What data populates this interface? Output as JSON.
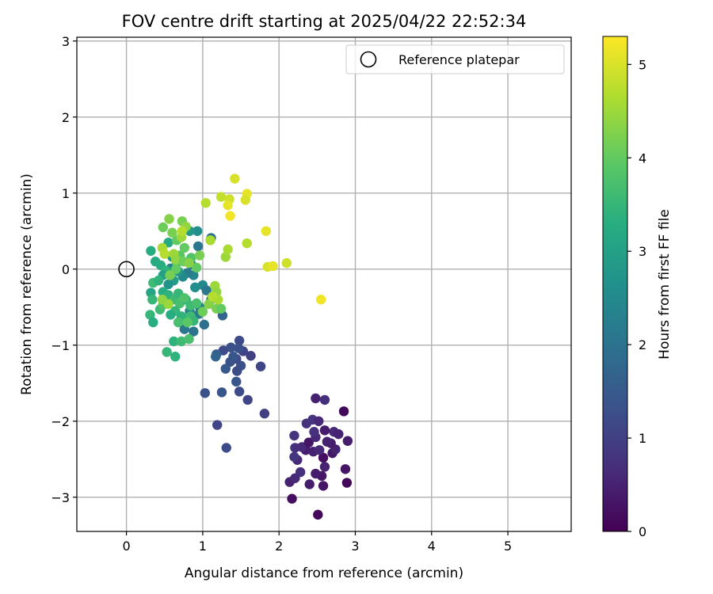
{
  "chart_data": {
    "type": "scatter",
    "title": "FOV centre drift starting at 2025/04/22 22:52:34",
    "xlabel": "Angular distance from reference (arcmin)",
    "ylabel": "Rotation from reference (arcmin)",
    "xlim": [
      -0.65,
      5.83
    ],
    "ylim": [
      -3.45,
      3.05
    ],
    "xticks": [
      0,
      1,
      2,
      3,
      4,
      5
    ],
    "yticks": [
      -3,
      -2,
      -1,
      0,
      1,
      2,
      3
    ],
    "xtick_labels": [
      "0",
      "1",
      "2",
      "3",
      "4",
      "5"
    ],
    "ytick_labels": [
      "−3",
      "−2",
      "−1",
      "0",
      "1",
      "2",
      "3"
    ],
    "grid": true,
    "legend": {
      "location": "top-right",
      "entries": [
        "Reference platepar"
      ]
    },
    "reference_point": {
      "x": 0,
      "y": 0,
      "marker": "open-circle",
      "label": "Reference platepar"
    },
    "colorbar": {
      "label": "Hours from first FF file",
      "colormap": "viridis",
      "range": [
        0,
        5.3
      ],
      "ticks": [
        0,
        1,
        2,
        3,
        4,
        5
      ],
      "tick_labels": [
        "0",
        "1",
        "2",
        "3",
        "4",
        "5"
      ]
    },
    "series": [
      {
        "points": [
          [
            2.51,
            -3.23,
            0.1
          ],
          [
            2.17,
            -3.02,
            0.2
          ],
          [
            2.58,
            -2.85,
            0.3
          ],
          [
            2.4,
            -2.83,
            0.4
          ],
          [
            2.89,
            -2.81,
            0.1
          ],
          [
            2.14,
            -2.8,
            0.5
          ],
          [
            2.87,
            -2.63,
            0.3
          ],
          [
            2.21,
            -2.75,
            0.6
          ],
          [
            2.56,
            -2.72,
            0.3
          ],
          [
            2.48,
            -2.69,
            0.4
          ],
          [
            2.28,
            -2.67,
            0.7
          ],
          [
            2.6,
            -2.6,
            0.5
          ],
          [
            2.24,
            -2.51,
            0.6
          ],
          [
            2.35,
            -2.38,
            0.4
          ],
          [
            2.58,
            -2.48,
            0.2
          ],
          [
            2.7,
            -2.42,
            0.3
          ],
          [
            2.74,
            -2.37,
            0.5
          ],
          [
            2.2,
            -2.47,
            0.8
          ],
          [
            2.3,
            -2.34,
            0.6
          ],
          [
            2.45,
            -2.4,
            0.5
          ],
          [
            2.53,
            -2.38,
            0.6
          ],
          [
            2.68,
            -2.29,
            0.4
          ],
          [
            2.21,
            -2.35,
            0.7
          ],
          [
            2.39,
            -2.28,
            0.3
          ],
          [
            2.63,
            -2.27,
            0.5
          ],
          [
            2.9,
            -2.26,
            0.4
          ],
          [
            2.48,
            -2.21,
            0.6
          ],
          [
            2.2,
            -2.19,
            0.8
          ],
          [
            2.72,
            -2.14,
            0.6
          ],
          [
            2.78,
            -2.17,
            0.5
          ],
          [
            2.46,
            -2.14,
            0.7
          ],
          [
            2.6,
            -2.12,
            0.4
          ],
          [
            2.36,
            -2.03,
            0.7
          ],
          [
            2.44,
            -1.98,
            0.8
          ],
          [
            2.52,
            -2.0,
            0.6
          ],
          [
            2.85,
            -1.87,
            0.1
          ],
          [
            2.48,
            -1.7,
            0.5
          ],
          [
            2.6,
            -1.72,
            0.7
          ],
          [
            1.31,
            -2.35,
            1.2
          ],
          [
            1.19,
            -2.05,
            1.1
          ],
          [
            1.03,
            -1.63,
            1.3
          ],
          [
            1.25,
            -1.62,
            1.4
          ],
          [
            1.48,
            -1.61,
            1.2
          ],
          [
            1.59,
            -1.72,
            1.1
          ],
          [
            1.81,
            -1.9,
            1.0
          ],
          [
            1.44,
            -1.48,
            1.4
          ],
          [
            1.5,
            -1.27,
            1.3
          ],
          [
            1.3,
            -1.31,
            1.5
          ],
          [
            1.45,
            -1.34,
            1.2
          ],
          [
            1.36,
            -1.22,
            1.3
          ],
          [
            1.44,
            -1.18,
            1.2
          ],
          [
            1.53,
            -1.08,
            1.1
          ],
          [
            1.63,
            -1.14,
            1.0
          ],
          [
            1.76,
            -1.28,
            1.1
          ],
          [
            1.37,
            -1.03,
            1.3
          ],
          [
            1.27,
            -1.07,
            1.2
          ],
          [
            1.48,
            -0.94,
            1.2
          ],
          [
            1.4,
            -1.15,
            1.4
          ],
          [
            1.18,
            -1.12,
            1.6
          ],
          [
            1.17,
            -1.15,
            1.7
          ],
          [
            1.47,
            -1.04,
            1.3
          ],
          [
            1.02,
            -0.73,
            1.9
          ],
          [
            0.88,
            -0.82,
            2.0
          ],
          [
            0.76,
            -0.79,
            2.1
          ],
          [
            1.26,
            -0.61,
            1.7
          ],
          [
            0.95,
            -0.59,
            2.2
          ],
          [
            0.83,
            -0.55,
            2.4
          ],
          [
            0.96,
            -0.5,
            2.3
          ],
          [
            1.11,
            -0.4,
            2.0
          ],
          [
            1.0,
            -0.21,
            2.5
          ],
          [
            1.05,
            -0.28,
            2.1
          ],
          [
            0.9,
            -0.24,
            2.6
          ],
          [
            0.88,
            -0.08,
            2.4
          ],
          [
            0.8,
            -0.05,
            2.2
          ],
          [
            0.74,
            -0.1,
            2.5
          ],
          [
            0.68,
            -0.03,
            2.8
          ],
          [
            0.62,
            -0.15,
            2.9
          ],
          [
            0.55,
            -0.2,
            2.7
          ],
          [
            0.58,
            0.01,
            2.3
          ],
          [
            0.85,
            0.06,
            2.0
          ],
          [
            0.94,
            0.3,
            2.1
          ],
          [
            1.11,
            0.41,
            2.0
          ],
          [
            0.93,
            0.5,
            2.6
          ],
          [
            0.83,
            0.5,
            2.8
          ],
          [
            0.6,
            0.16,
            2.9
          ],
          [
            0.55,
            0.35,
            3.2
          ],
          [
            0.32,
            0.24,
            3.3
          ],
          [
            0.38,
            0.1,
            3.2
          ],
          [
            0.45,
            0.05,
            3.3
          ],
          [
            0.52,
            -0.02,
            3.4
          ],
          [
            0.48,
            -0.08,
            3.0
          ],
          [
            0.35,
            -0.18,
            3.6
          ],
          [
            0.42,
            -0.15,
            3.4
          ],
          [
            0.32,
            -0.31,
            3.1
          ],
          [
            0.34,
            -0.4,
            3.5
          ],
          [
            0.48,
            -0.3,
            3.3
          ],
          [
            0.55,
            -0.34,
            3.4
          ],
          [
            0.62,
            -0.4,
            3.6
          ],
          [
            0.68,
            -0.32,
            3.5
          ],
          [
            0.7,
            -0.45,
            3.7
          ],
          [
            0.78,
            -0.4,
            3.4
          ],
          [
            0.84,
            -0.48,
            3.6
          ],
          [
            0.76,
            -0.38,
            3.8
          ],
          [
            0.64,
            -0.55,
            3.5
          ],
          [
            0.58,
            -0.6,
            3.3
          ],
          [
            0.72,
            -0.62,
            3.4
          ],
          [
            0.84,
            -0.62,
            3.6
          ],
          [
            0.88,
            -0.68,
            3.5
          ],
          [
            0.68,
            -0.7,
            3.7
          ],
          [
            0.44,
            -0.53,
            3.6
          ],
          [
            0.48,
            -0.47,
            3.8
          ],
          [
            0.31,
            -0.6,
            3.5
          ],
          [
            0.35,
            -0.7,
            3.3
          ],
          [
            0.62,
            -0.95,
            3.4
          ],
          [
            0.72,
            -0.95,
            3.6
          ],
          [
            0.82,
            -0.92,
            3.7
          ],
          [
            0.53,
            -1.09,
            3.5
          ],
          [
            0.64,
            -1.15,
            3.4
          ],
          [
            0.8,
            -0.7,
            3.9
          ],
          [
            0.92,
            -0.45,
            3.7
          ],
          [
            0.66,
            0.08,
            3.6
          ],
          [
            0.7,
            0.18,
            3.9
          ],
          [
            0.76,
            0.28,
            4.0
          ],
          [
            0.85,
            0.15,
            3.8
          ],
          [
            0.92,
            0.02,
            4.0
          ],
          [
            0.96,
            0.18,
            4.2
          ],
          [
            0.66,
            0.38,
            4.0
          ],
          [
            0.6,
            0.48,
            4.2
          ],
          [
            0.48,
            0.55,
            4.1
          ],
          [
            0.56,
            0.66,
            4.3
          ],
          [
            0.73,
            0.63,
            4.2
          ],
          [
            0.78,
            0.56,
            4.4
          ],
          [
            0.72,
            0.42,
            4.5
          ],
          [
            0.62,
            0.2,
            4.5
          ],
          [
            0.47,
            0.28,
            4.6
          ],
          [
            0.5,
            0.2,
            4.7
          ],
          [
            0.65,
            0.12,
            4.4
          ],
          [
            0.75,
            0.1,
            4.1
          ],
          [
            0.82,
            0.08,
            4.3
          ],
          [
            0.65,
            0.0,
            4.0
          ],
          [
            0.57,
            -0.08,
            4.2
          ],
          [
            0.73,
            0.5,
            4.7
          ],
          [
            1.04,
            0.87,
            4.7
          ],
          [
            1.1,
            0.38,
            4.6
          ],
          [
            1.3,
            0.16,
            4.5
          ],
          [
            1.33,
            0.26,
            4.6
          ],
          [
            1.24,
            0.95,
            4.8
          ],
          [
            1.35,
            0.92,
            4.9
          ],
          [
            1.0,
            -0.56,
            4.1
          ],
          [
            1.08,
            -0.46,
            4.3
          ],
          [
            1.13,
            -0.38,
            4.4
          ],
          [
            1.18,
            -0.52,
            4.2
          ],
          [
            1.24,
            -0.52,
            4.0
          ],
          [
            1.16,
            -0.22,
            4.5
          ],
          [
            1.18,
            -0.3,
            4.4
          ],
          [
            1.2,
            -0.4,
            4.6
          ],
          [
            1.13,
            -0.36,
            4.7
          ],
          [
            1.58,
            0.34,
            4.7
          ],
          [
            0.55,
            -0.46,
            4.5
          ],
          [
            0.47,
            -0.4,
            4.4
          ],
          [
            1.42,
            1.19,
            5.0
          ],
          [
            1.58,
            0.99,
            5.1
          ],
          [
            1.56,
            0.91,
            5.0
          ],
          [
            1.33,
            0.84,
            5.1
          ],
          [
            1.36,
            0.7,
            5.2
          ],
          [
            1.83,
            0.5,
            5.1
          ],
          [
            1.85,
            0.03,
            5.0
          ],
          [
            1.92,
            0.04,
            5.1
          ],
          [
            2.1,
            0.08,
            4.9
          ],
          [
            2.55,
            -0.4,
            5.2
          ]
        ]
      }
    ]
  }
}
